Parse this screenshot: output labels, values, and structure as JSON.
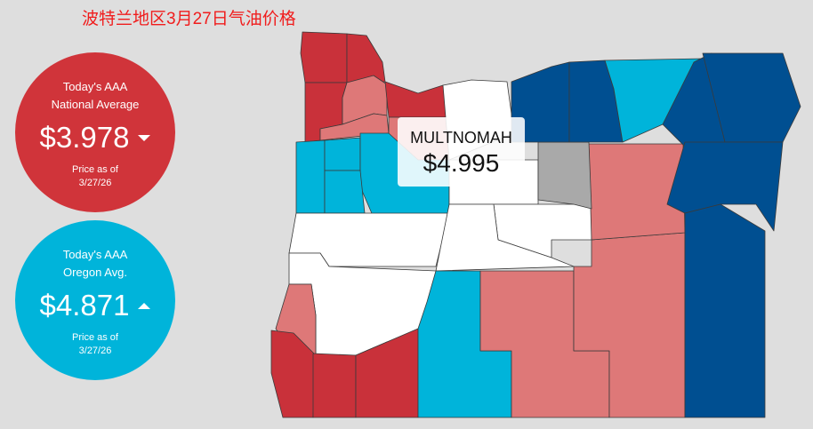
{
  "title": "波特兰地区3月27日气油价格",
  "national": {
    "line1": "Today's AAA",
    "line2": "National Average",
    "price": "$3.978",
    "trend": "down",
    "asof_label": "Price as of",
    "date": "3/27/26",
    "color": "#d0343a"
  },
  "oregon": {
    "line1": "Today's AAA",
    "line2": "Oregon Avg.",
    "price": "$4.871",
    "trend": "up",
    "asof_label": "Price as of",
    "date": "3/27/26",
    "color": "#00b4da"
  },
  "tooltip": {
    "county": "MULTNOMAH",
    "price": "$4.995"
  },
  "legend_colors": {
    "highest": "#c9313a",
    "high": "#de7878",
    "mid": "#ffffff",
    "low": "#00b4da",
    "lowest": "#004f91",
    "no_data": "#a9a9a9"
  }
}
